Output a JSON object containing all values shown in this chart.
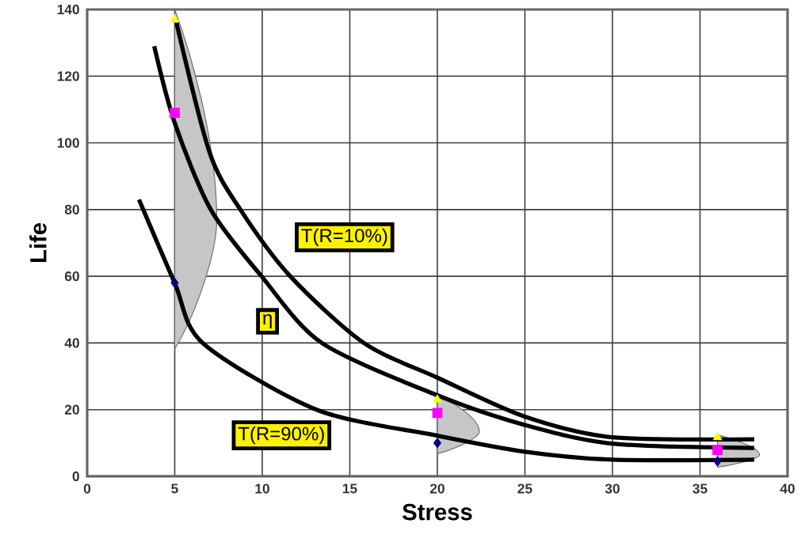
{
  "chart_data": {
    "type": "line",
    "xlabel": "Stress",
    "ylabel": "Life",
    "xlim": [
      0,
      40
    ],
    "xticks": [
      0,
      5,
      10,
      15,
      20,
      25,
      30,
      35,
      40
    ],
    "ylim": [
      0,
      140
    ],
    "yticks": [
      0,
      20,
      40,
      60,
      80,
      100,
      120,
      140
    ],
    "grid": true,
    "legend": false,
    "series": [
      {
        "name": "T(R=10%)",
        "color": "#000000",
        "marker": "none",
        "x": [
          5.1,
          7,
          8.75,
          11.6,
          15.8,
          20,
          25,
          30,
          38.1
        ],
        "values": [
          136,
          97,
          80,
          60,
          40,
          29.6,
          17.9,
          11.7,
          11.1
        ]
      },
      {
        "name": "η",
        "color": "#000000",
        "marker": "none",
        "x": [
          3.83,
          5,
          7.06,
          9.96,
          13.4,
          20,
          25,
          30,
          38.1
        ],
        "values": [
          129,
          106,
          80,
          60,
          40,
          24.3,
          15.4,
          9.8,
          8.5
        ]
      },
      {
        "name": "T(R=90%)",
        "color": "#000000",
        "marker": "none",
        "x": [
          2.96,
          5,
          6.6,
          13.1,
          20,
          25,
          30,
          38.1
        ],
        "values": [
          83,
          58,
          40,
          20,
          12.2,
          7.4,
          5,
          5
        ]
      },
      {
        "type": "scatter",
        "color": "#ffff00",
        "marker": "triangle",
        "x": [
          5,
          20,
          36
        ],
        "values": [
          137,
          23,
          11.7
        ]
      },
      {
        "type": "scatter",
        "color": "#ff00ff",
        "marker": "square",
        "x": [
          5,
          20,
          36
        ],
        "values": [
          109,
          19,
          7.9
        ]
      },
      {
        "type": "scatter",
        "color": "#000080",
        "marker": "diamond",
        "x": [
          5,
          20,
          36
        ],
        "values": [
          58,
          10,
          4.5
        ]
      }
    ]
  }
}
